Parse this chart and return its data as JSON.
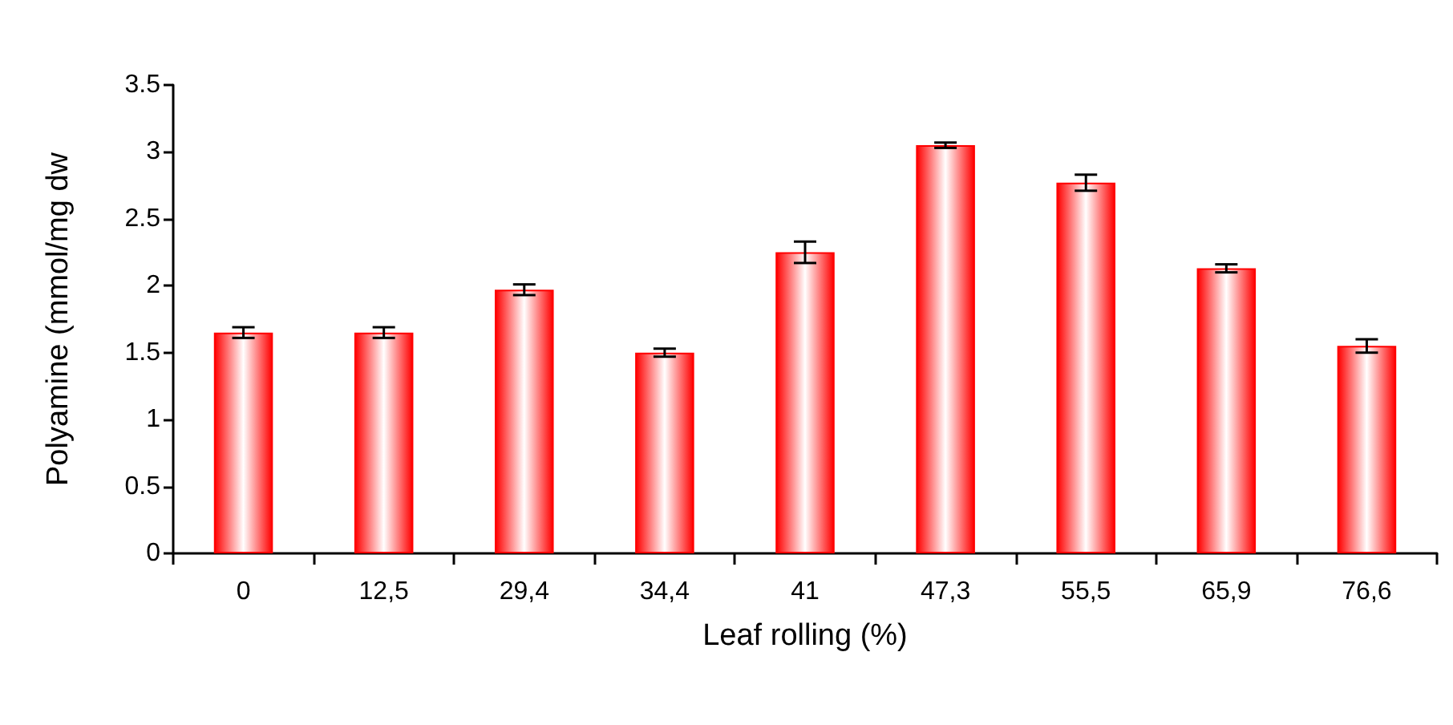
{
  "chart_data": {
    "type": "bar",
    "xlabel": "Leaf rolling (%)",
    "ylabel": "Polyamine (mmol/mg dw",
    "categories": [
      "0",
      "12,5",
      "29,4",
      "34,4",
      "41",
      "47,3",
      "55,5",
      "65,9",
      "76,6"
    ],
    "values": [
      1.65,
      1.65,
      1.97,
      1.5,
      2.25,
      3.05,
      2.77,
      2.13,
      1.55
    ],
    "errors": [
      0.04,
      0.04,
      0.04,
      0.03,
      0.08,
      0.02,
      0.06,
      0.03,
      0.05
    ],
    "color": "#ff0000",
    "ylim": [
      0,
      3.5
    ],
    "yticks": [
      0,
      0.5,
      1,
      1.5,
      2,
      2.5,
      3,
      3.5
    ],
    "grid": false
  }
}
